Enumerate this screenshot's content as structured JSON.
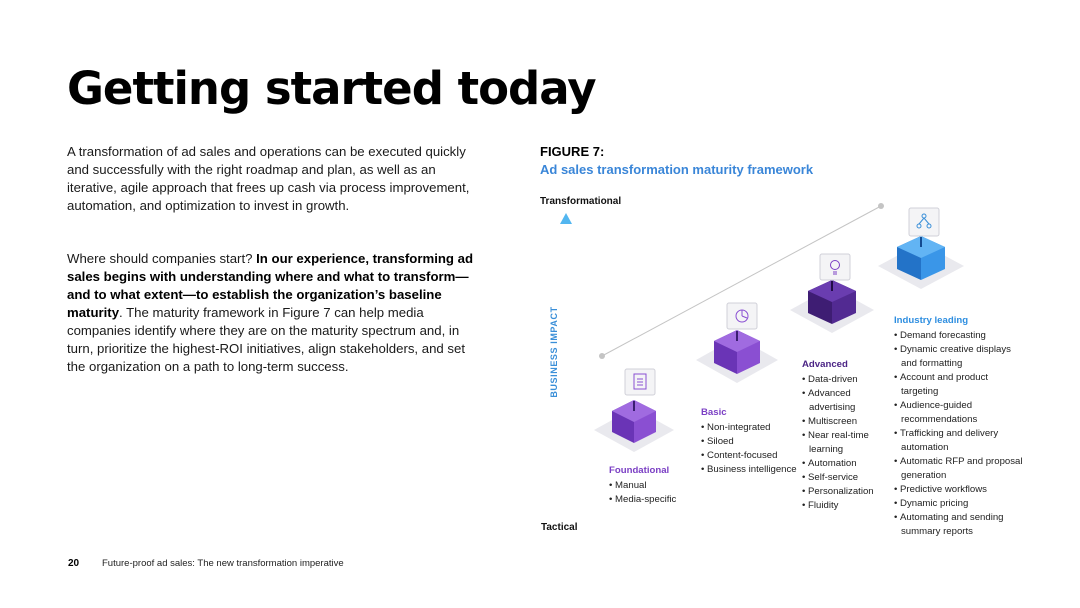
{
  "title": "Getting started today",
  "intro": {
    "p1": "A transformation of ad sales and operations can be executed quickly and successfully with the right roadmap and plan, as well as an iterative, agile approach that frees up cash via process improvement, automation, and optimization to invest in growth.",
    "p2_start": "Where should companies start? ",
    "p2_bold": "In our experience, transforming ad sales begins with understanding where and what to transform—and to what extent—to establish the organization’s baseline maturity",
    "p2_end": ". The maturity framework in Figure 7 can help media companies identify where they are on the maturity spectrum and, in turn, prioritize the highest-ROI initiatives, align stakeholders, and set the organization on a path to long-term success."
  },
  "figure": {
    "label": "FIGURE 7:",
    "title": "Ad sales transformation maturity framework",
    "axis_top": "Transformational",
    "axis_bottom": "Tactical",
    "y_axis_label": "BUSINESS IMPACT",
    "colors": {
      "axis_blue": "#3a8fd8",
      "purple_stage": "#7b3fc4",
      "advanced_stage": "#4b2485",
      "industry_stage": "#2e8ee0",
      "title_blue": "#3a86d8"
    },
    "stages": [
      {
        "name": "Foundational",
        "icon": "document-icon",
        "items": [
          "Manual",
          "Media-specific"
        ]
      },
      {
        "name": "Basic",
        "icon": "chart-icon",
        "items": [
          "Non-integrated",
          "Siloed",
          "Content-focused",
          "Business intelligence"
        ]
      },
      {
        "name": "Advanced",
        "icon": "bulb-icon",
        "items": [
          "Data-driven",
          "Advanced advertising",
          "Multiscreen",
          "Near real-time learning",
          "Automation",
          "Self-service",
          "Personalization",
          "Fluidity"
        ]
      },
      {
        "name": "Industry leading",
        "icon": "network-icon",
        "items": [
          "Demand forecasting",
          "Dynamic creative displays and formatting",
          "Account and product targeting",
          "Audience-guided recommendations",
          "Trafficking and delivery automation",
          "Automatic RFP and proposal generation",
          "Predictive workflows",
          "Dynamic pricing",
          "Automating and sending summary reports"
        ]
      }
    ]
  },
  "footer": {
    "page_number": "20",
    "text": "Future-proof ad sales: The new transformation imperative"
  }
}
